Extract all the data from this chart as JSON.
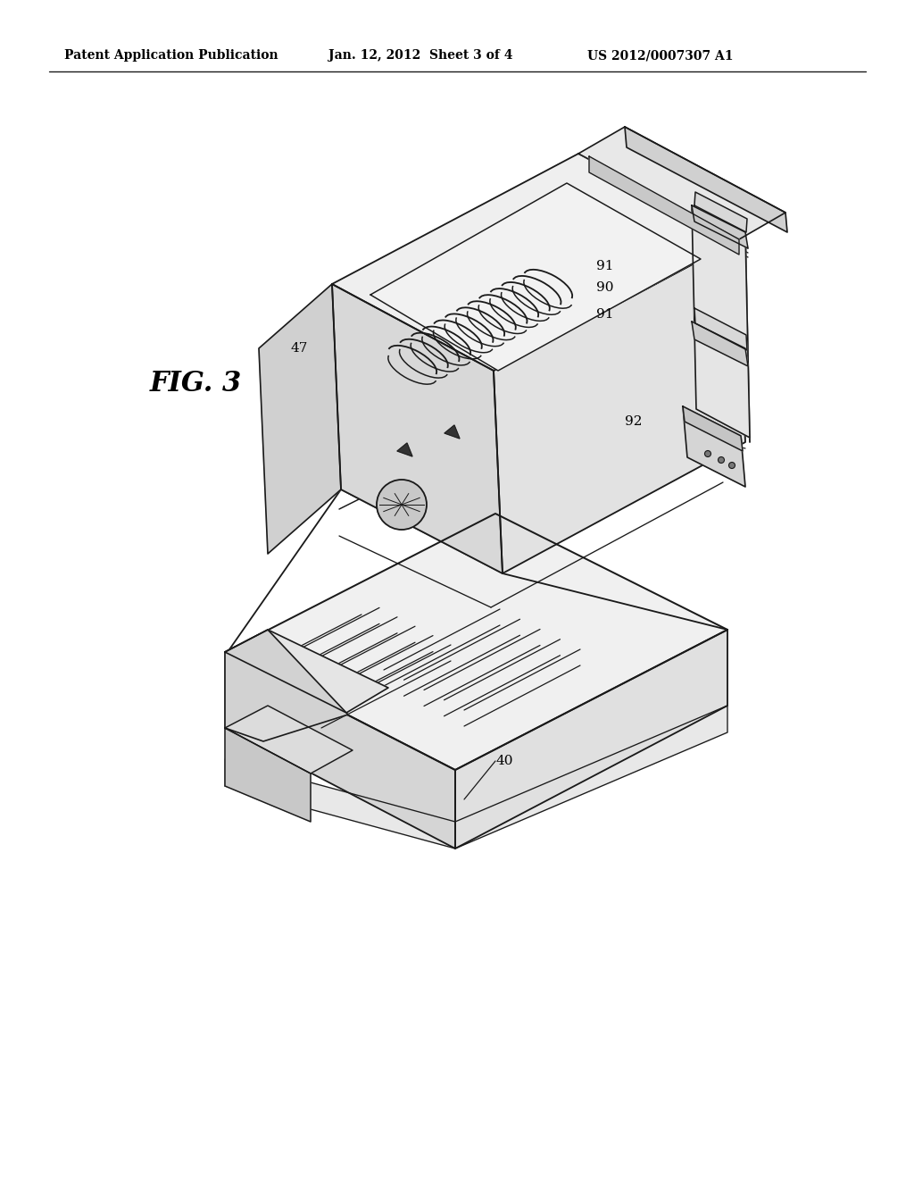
{
  "bg_color": "#ffffff",
  "header_left": "Patent Application Publication",
  "header_mid": "Jan. 12, 2012  Sheet 3 of 4",
  "header_right": "US 2012/0007307 A1",
  "fig_label": "FIG. 3",
  "line_color": "#1a1a1a",
  "label_fontsize": 11,
  "header_fontsize": 10,
  "fig_label_fontsize": 22
}
